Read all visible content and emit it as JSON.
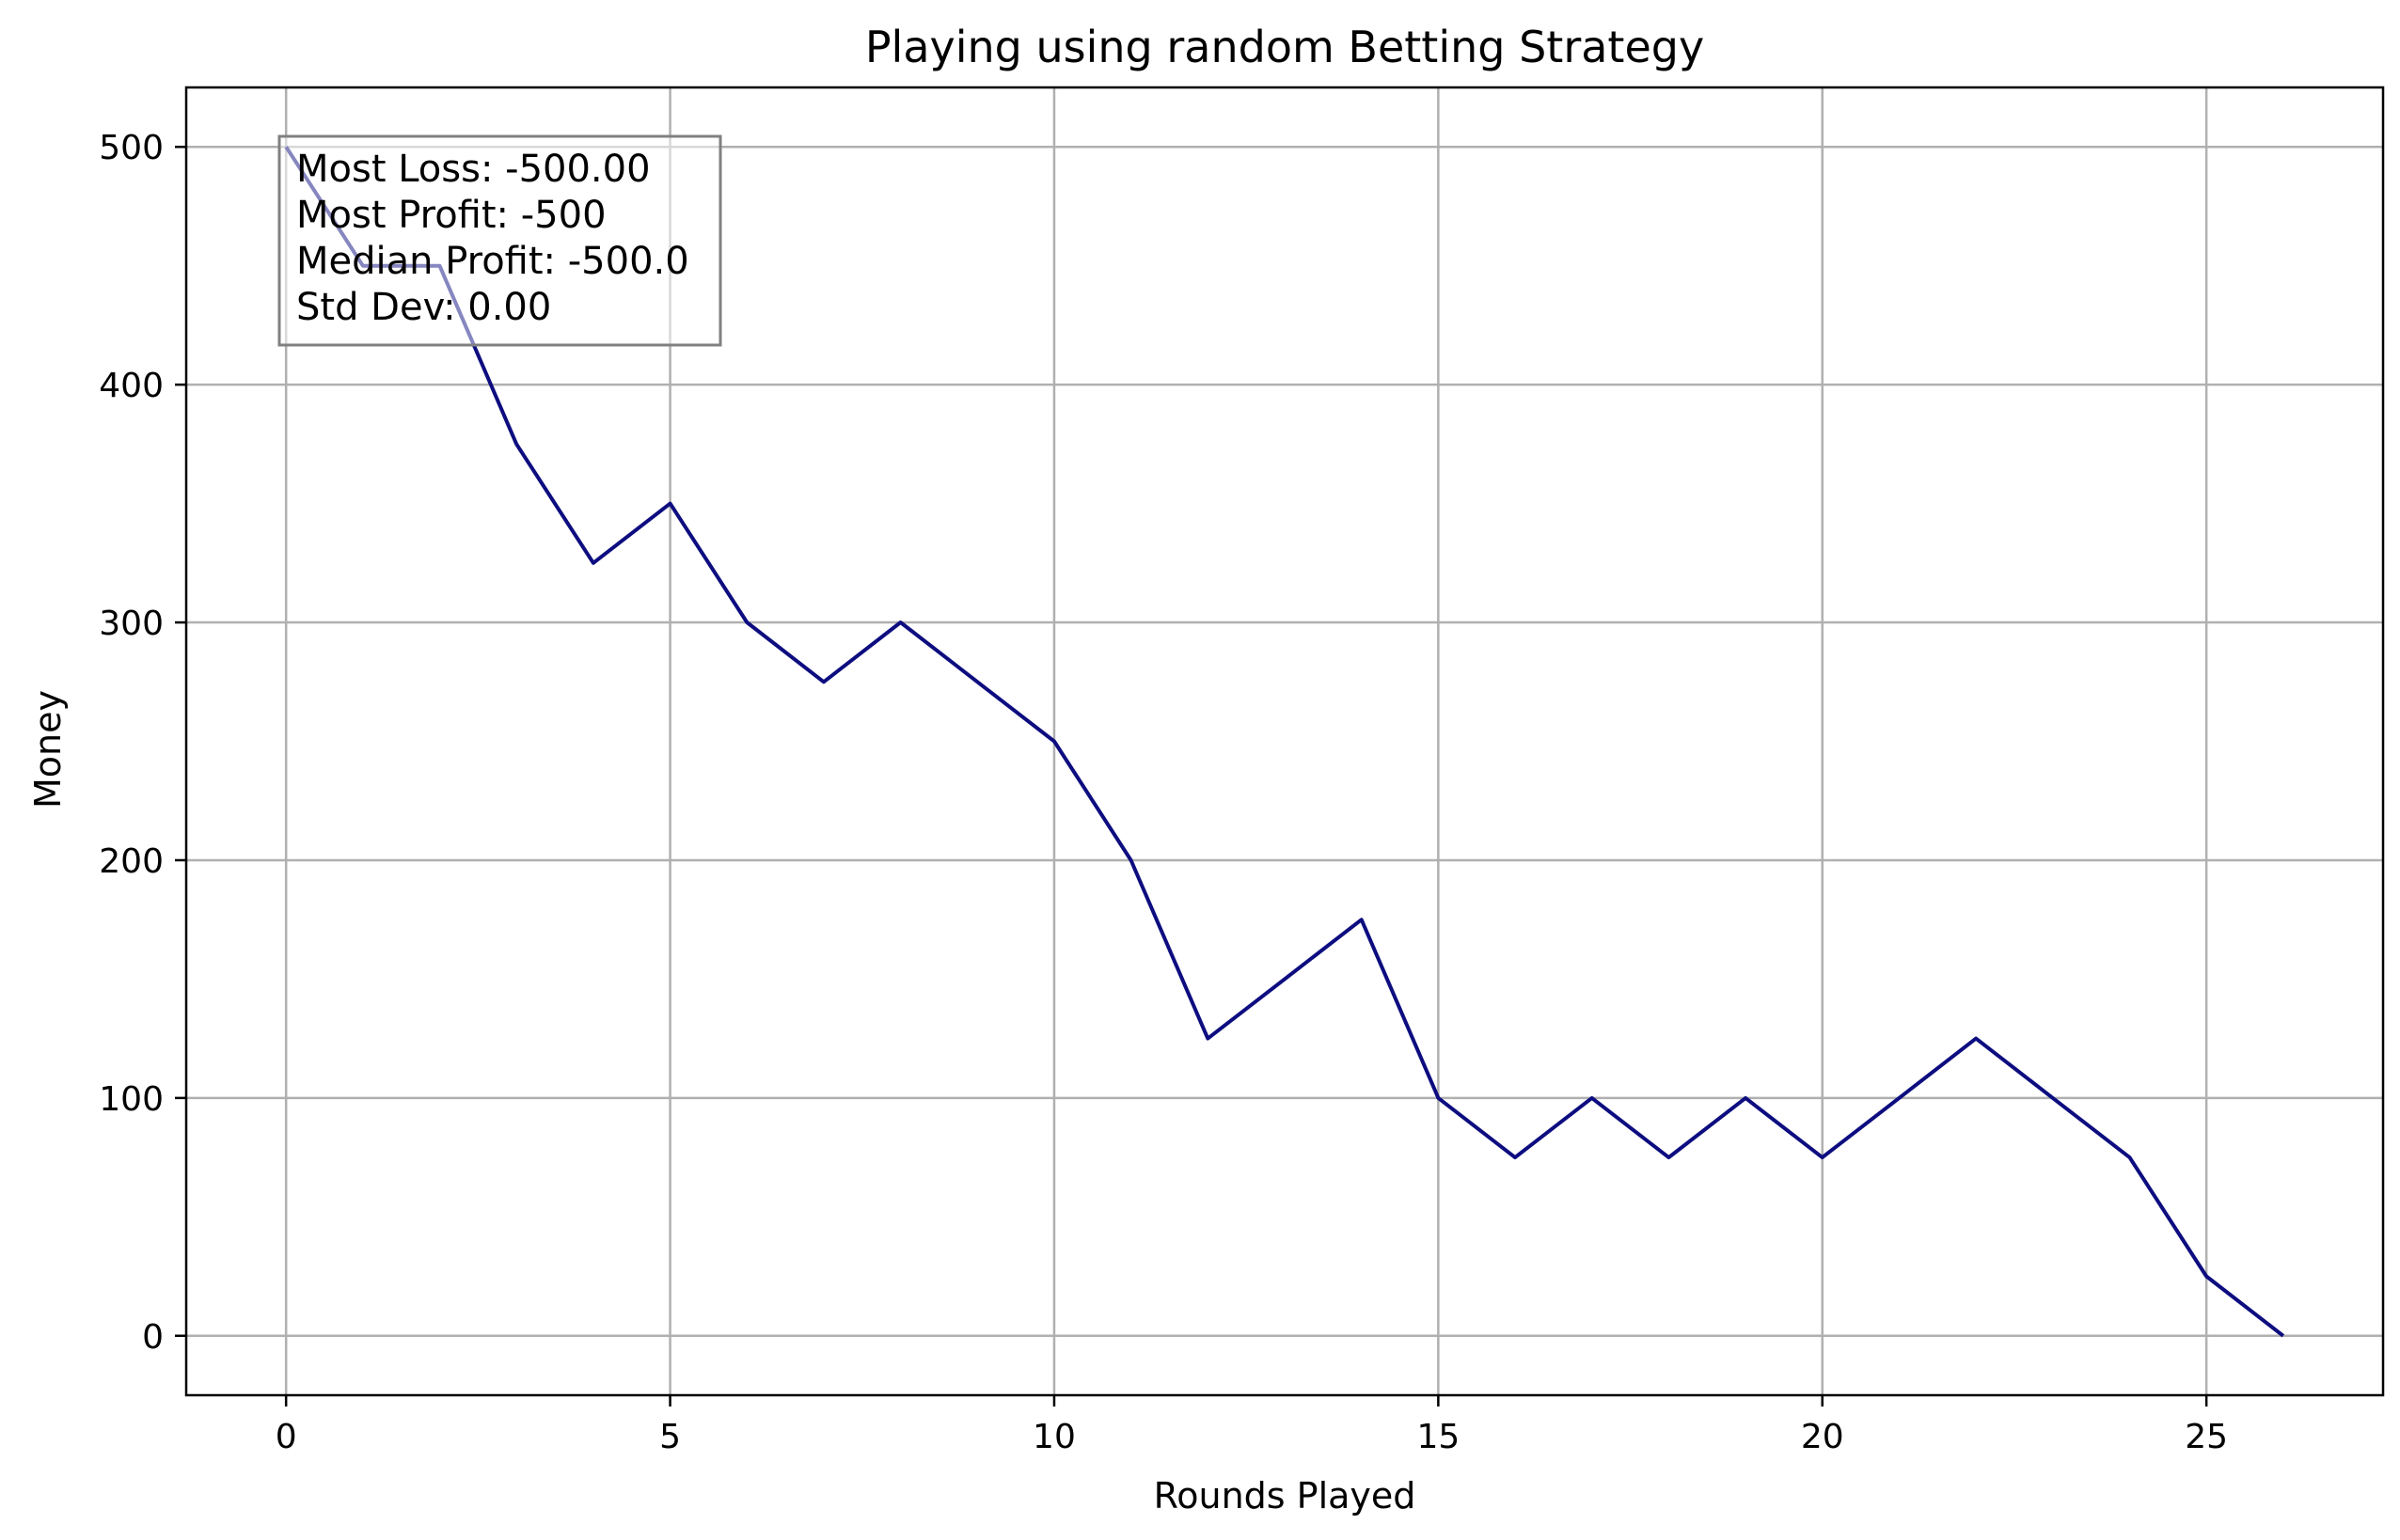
{
  "chart_data": {
    "type": "line",
    "title": "Playing using random Betting Strategy",
    "xlabel": "Rounds Played",
    "ylabel": "Money",
    "xlim": [
      -1.3,
      27.3
    ],
    "ylim": [
      -25,
      525
    ],
    "xticks": [
      0,
      5,
      10,
      15,
      20,
      25
    ],
    "yticks": [
      0,
      100,
      200,
      300,
      400,
      500
    ],
    "grid": true,
    "series": [
      {
        "color": "#0d0d80",
        "x": [
          0,
          1,
          2,
          3,
          4,
          5,
          6,
          7,
          8,
          9,
          10,
          11,
          12,
          13,
          14,
          15,
          16,
          17,
          18,
          19,
          20,
          21,
          22,
          23,
          24,
          25,
          26
        ],
        "y": [
          500,
          450,
          450,
          375,
          325,
          350,
          300,
          275,
          300,
          275,
          250,
          200,
          125,
          150,
          175,
          100,
          75,
          100,
          75,
          100,
          75,
          100,
          125,
          100,
          75,
          25,
          0
        ]
      }
    ],
    "annotation": {
      "placement": "top-left",
      "lines": [
        "Most Loss: -500.00",
        "Most Profit: -500",
        "Median Profit: -500.0",
        "Std Dev: 0.00"
      ]
    }
  }
}
